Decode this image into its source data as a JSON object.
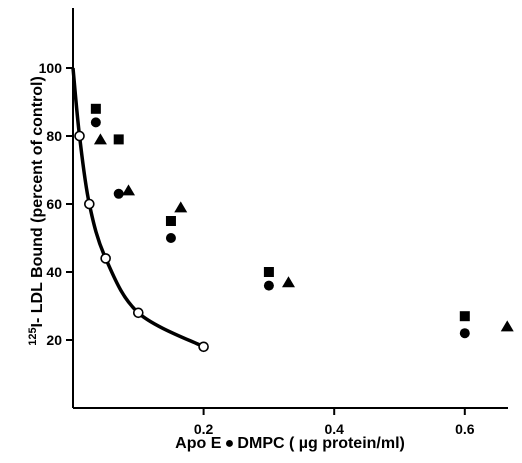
{
  "chart_data": {
    "type": "scatter",
    "title": "",
    "xlabel": "Apo E ● DMPC ( µg protein/ml)",
    "ylabel": "125I- LDL Bound (percent of control)",
    "ylabel_parts": {
      "superscript": "125",
      "main": "I- LDL Bound (percent of control)"
    },
    "xlim": [
      0,
      0.7
    ],
    "ylim": [
      0,
      120
    ],
    "xticks": [
      0.2,
      0.4,
      0.6
    ],
    "xtick_labels": [
      "0.2",
      "0.4",
      "0.6"
    ],
    "yticks": [
      20,
      40,
      60,
      80,
      100
    ],
    "ytick_labels": [
      "20",
      "40",
      "60",
      "80",
      "100"
    ],
    "grid": false,
    "legend": "none",
    "series": [
      {
        "marker": "open-circle",
        "line": "smooth",
        "color": "#000000",
        "points": [
          {
            "x": 0.0,
            "y": 100
          },
          {
            "x": 0.01,
            "y": 80
          },
          {
            "x": 0.025,
            "y": 60
          },
          {
            "x": 0.05,
            "y": 44
          },
          {
            "x": 0.1,
            "y": 28
          },
          {
            "x": 0.2,
            "y": 18
          }
        ]
      },
      {
        "marker": "filled-square",
        "color": "#000000",
        "points": [
          {
            "x": 0.035,
            "y": 88
          },
          {
            "x": 0.07,
            "y": 79
          },
          {
            "x": 0.15,
            "y": 55
          },
          {
            "x": 0.3,
            "y": 40
          },
          {
            "x": 0.6,
            "y": 27
          }
        ]
      },
      {
        "marker": "filled-circle",
        "color": "#000000",
        "points": [
          {
            "x": 0.035,
            "y": 84
          },
          {
            "x": 0.07,
            "y": 63
          },
          {
            "x": 0.15,
            "y": 50
          },
          {
            "x": 0.3,
            "y": 36
          },
          {
            "x": 0.6,
            "y": 22
          }
        ]
      },
      {
        "marker": "filled-triangle",
        "color": "#000000",
        "points": [
          {
            "x": 0.042,
            "y": 79
          },
          {
            "x": 0.085,
            "y": 64
          },
          {
            "x": 0.165,
            "y": 59
          },
          {
            "x": 0.33,
            "y": 37
          },
          {
            "x": 0.665,
            "y": 24
          }
        ]
      }
    ]
  }
}
